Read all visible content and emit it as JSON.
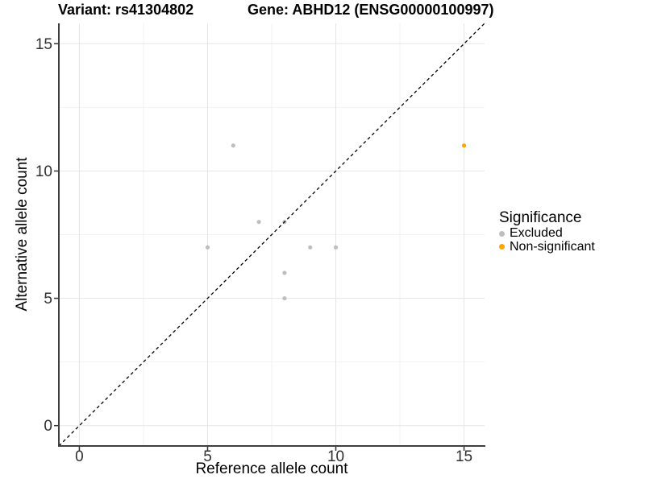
{
  "chart_data": {
    "type": "scatter",
    "title_left": "Variant: rs41304802",
    "title_right": "Gene: ABHD12 (ENSG00000100997)",
    "xlabel": "Reference allele count",
    "ylabel": "Alternative allele count",
    "xlim": [
      -0.8,
      15.8
    ],
    "ylim": [
      -0.8,
      15.8
    ],
    "x_ticks": [
      0,
      5,
      10,
      15
    ],
    "y_ticks": [
      0,
      5,
      10,
      15
    ],
    "minor_ticks": [
      2.5,
      7.5,
      12.5
    ],
    "grid": true,
    "legend": {
      "title": "Significance",
      "position": "right"
    },
    "reference_line": {
      "type": "identity",
      "slope": 1,
      "intercept": 0,
      "style": "dashed",
      "color": "#000000"
    },
    "series": [
      {
        "name": "Excluded",
        "color": "#BEBEBE",
        "points": [
          [
            5,
            7
          ],
          [
            6,
            11
          ],
          [
            7,
            8
          ],
          [
            8,
            8
          ],
          [
            8,
            6
          ],
          [
            8,
            5
          ],
          [
            9,
            7
          ],
          [
            10,
            7
          ]
        ]
      },
      {
        "name": "Non-significant",
        "color": "#FFA500",
        "points": [
          [
            15,
            11
          ]
        ]
      }
    ]
  },
  "style": {
    "grid_major": "#E5E5E5",
    "grid_minor": "#F2F2F2",
    "axis_line": "#3F3F3F",
    "tick_color": "#333333",
    "point_radius": 2.6,
    "dash_pattern": "4 3.4"
  }
}
